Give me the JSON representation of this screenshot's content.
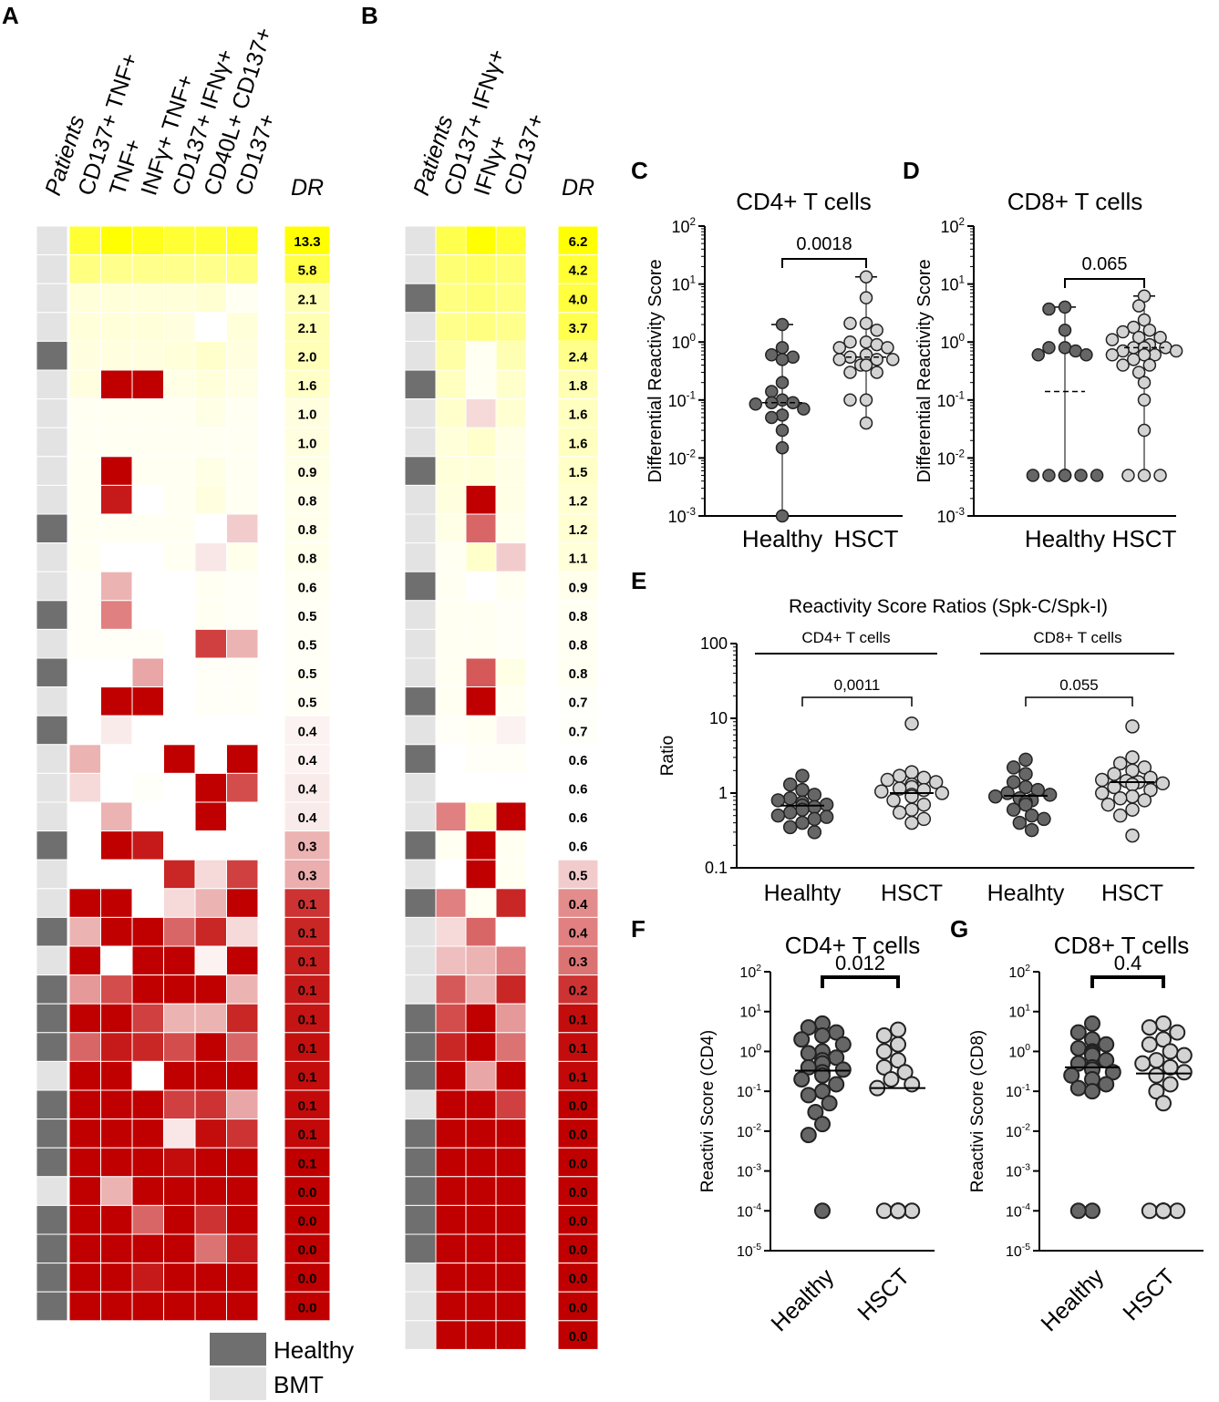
{
  "figure": {
    "panel_letters": [
      "A",
      "B",
      "C",
      "D",
      "E",
      "F",
      "G"
    ],
    "legend": {
      "healthy_label": "Healthy",
      "bmt_label": "BMT",
      "healthy_color": "#6f6f6f",
      "bmt_color": "#e3e3e3"
    },
    "scale_colors": {
      "high": "#ffff00",
      "mid": "#ffffff",
      "low": "#c00000"
    }
  },
  "chart_data": [
    {
      "panel": "A",
      "type": "heatmap",
      "patients_label": "Patients",
      "dr_label": "DR",
      "columns": [
        "CD137+ TNF+",
        "TNF+",
        "INFγ+ TNF+",
        "CD137+ IFNγ+",
        "CD40L+ CD137+",
        "CD137+"
      ],
      "patients": [
        "BMT",
        "BMT",
        "BMT",
        "BMT",
        "Healthy",
        "BMT",
        "BMT",
        "BMT",
        "BMT",
        "BMT",
        "Healthy",
        "BMT",
        "BMT",
        "Healthy",
        "BMT",
        "Healthy",
        "BMT",
        "Healthy",
        "BMT",
        "BMT",
        "BMT",
        "Healthy",
        "BMT",
        "BMT",
        "Healthy",
        "BMT",
        "Healthy",
        "Healthy",
        "Healthy",
        "BMT",
        "Healthy",
        "Healthy",
        "Healthy",
        "BMT",
        "Healthy",
        "Healthy",
        "Healthy",
        "Healthy"
      ],
      "dr_values": [
        "13.3",
        "5.8",
        "2.1",
        "2.1",
        "2.0",
        "1.6",
        "1.0",
        "1.0",
        "0.9",
        "0.8",
        "0.8",
        "0.8",
        "0.6",
        "0.5",
        "0.5",
        "0.5",
        "0.5",
        "0.4",
        "0.4",
        "0.4",
        "0.4",
        "0.3",
        "0.3",
        "0.1",
        "0.1",
        "0.1",
        "0.1",
        "0.1",
        "0.1",
        "0.1",
        "0.1",
        "0.1",
        "0.1",
        "0.0",
        "0.0",
        "0.0",
        "0.0",
        "0.0"
      ],
      "dr_intensity": [
        1.0,
        0.72,
        0.3,
        0.3,
        0.28,
        0.22,
        0.12,
        0.12,
        0.1,
        0.08,
        0.08,
        0.08,
        0.05,
        0.04,
        0.04,
        0.04,
        0.04,
        -0.05,
        -0.05,
        -0.08,
        -0.08,
        -0.3,
        -0.32,
        -0.8,
        -0.85,
        -0.88,
        -0.9,
        -0.92,
        -0.94,
        -0.95,
        -0.96,
        -0.97,
        -1,
        -1,
        -1,
        -1,
        -1,
        -1
      ],
      "cells": [
        [
          0.8,
          1.0,
          0.9,
          0.8,
          0.8,
          0.85
        ],
        [
          0.5,
          0.45,
          0.45,
          0.45,
          0.45,
          0.5
        ],
        [
          0.15,
          0.15,
          0.15,
          0.15,
          0.18,
          0.05
        ],
        [
          0.15,
          0.15,
          0.15,
          0.12,
          0.0,
          0.15
        ],
        [
          0.12,
          0.12,
          0.12,
          0.15,
          0.2,
          0.12
        ],
        [
          0.12,
          -1,
          -1,
          0.1,
          0.15,
          0.1
        ],
        [
          0.05,
          0.05,
          0.05,
          0.05,
          0.1,
          0.05
        ],
        [
          0.05,
          0.05,
          0.05,
          0.05,
          0.05,
          0.05
        ],
        [
          0.05,
          -1,
          0.05,
          0.05,
          0.1,
          0.05
        ],
        [
          0.05,
          -0.9,
          0.0,
          0.05,
          0.12,
          0.05
        ],
        [
          0.05,
          0.05,
          0.05,
          0.05,
          0.0,
          -0.2
        ],
        [
          0.05,
          0.0,
          0.0,
          0.05,
          -0.1,
          0.08
        ],
        [
          0.03,
          -0.3,
          0.0,
          0.0,
          0.05,
          0.03
        ],
        [
          0.03,
          -0.5,
          0.0,
          0.0,
          0.05,
          0.03
        ],
        [
          0.03,
          0.03,
          0.03,
          0.0,
          -0.75,
          -0.3
        ],
        [
          0.0,
          0.0,
          -0.35,
          0.0,
          0.03,
          0.03
        ],
        [
          0.0,
          -1,
          -1,
          0.0,
          0.03,
          0.03
        ],
        [
          0.0,
          -0.08,
          0.0,
          0.0,
          0.0,
          0.0
        ],
        [
          -0.3,
          0.0,
          0.0,
          -1,
          0.0,
          -1
        ],
        [
          -0.15,
          0.0,
          0.02,
          0.0,
          -1,
          -0.7
        ],
        [
          0.0,
          -0.3,
          0.0,
          0.0,
          -1,
          0.0
        ],
        [
          0.0,
          -1,
          -0.9,
          0.0,
          0.0,
          0.0
        ],
        [
          0.0,
          0.0,
          0.0,
          -0.85,
          -0.15,
          -0.75
        ],
        [
          -1,
          -1,
          0.0,
          -0.15,
          -0.3,
          -1
        ],
        [
          -0.3,
          -1,
          -1,
          -0.6,
          -0.85,
          -0.15
        ],
        [
          -1,
          0.0,
          -1,
          -1,
          -0.05,
          -1
        ],
        [
          -0.4,
          -0.7,
          -1,
          -1,
          -1,
          -0.3
        ],
        [
          -1,
          -1,
          -0.75,
          -0.3,
          -0.3,
          -0.85
        ],
        [
          -0.6,
          -0.9,
          -0.85,
          -0.7,
          -1,
          -0.6
        ],
        [
          -1,
          -1,
          0.0,
          -1,
          -1,
          -1
        ],
        [
          -1,
          -1,
          -1,
          -0.75,
          -0.8,
          -0.35
        ],
        [
          -1,
          -1,
          -1,
          -0.1,
          -0.95,
          -0.8
        ],
        [
          -1,
          -1,
          -1,
          -0.95,
          -1,
          -1
        ],
        [
          -1,
          -0.3,
          -1,
          -1,
          -1,
          -1
        ],
        [
          -1,
          -1,
          -0.6,
          -1,
          -0.8,
          -1
        ],
        [
          -1,
          -1,
          -1,
          -1,
          -0.55,
          -0.9
        ],
        [
          -1,
          -1,
          -0.9,
          -1,
          -1,
          -1
        ],
        [
          -1,
          -1,
          -1,
          -1,
          -1,
          -1
        ]
      ]
    },
    {
      "panel": "B",
      "type": "heatmap",
      "patients_label": "Patients",
      "dr_label": "DR",
      "columns": [
        "CD137+ IFNγ+",
        "IFNγ+",
        "CD137+"
      ],
      "patients": [
        "BMT",
        "BMT",
        "Healthy",
        "BMT",
        "BMT",
        "Healthy",
        "BMT",
        "BMT",
        "Healthy",
        "BMT",
        "BMT",
        "BMT",
        "Healthy",
        "BMT",
        "BMT",
        "BMT",
        "Healthy",
        "BMT",
        "Healthy",
        "BMT",
        "BMT",
        "Healthy",
        "BMT",
        "Healthy",
        "BMT",
        "BMT",
        "BMT",
        "Healthy",
        "Healthy",
        "Healthy",
        "BMT",
        "Healthy",
        "Healthy",
        "Healthy",
        "Healthy",
        "Healthy",
        "BMT",
        "BMT",
        "BMT"
      ],
      "dr_values": [
        "6.2",
        "4.2",
        "4.0",
        "3.7",
        "2.4",
        "1.8",
        "1.6",
        "1.6",
        "1.5",
        "1.2",
        "1.2",
        "1.1",
        "0.9",
        "0.8",
        "0.8",
        "0.8",
        "0.7",
        "0.7",
        "0.6",
        "0.6",
        "0.6",
        "0.6",
        "0.5",
        "0.4",
        "0.4",
        "0.3",
        "0.2",
        "0.1",
        "0.1",
        "0.1",
        "0.0",
        "0.0",
        "0.0",
        "0.0",
        "0.0",
        "0.0",
        "0.0",
        "0.0",
        "0.0"
      ],
      "dr_intensity": [
        1.0,
        0.8,
        0.75,
        0.7,
        0.45,
        0.3,
        0.25,
        0.25,
        0.22,
        0.18,
        0.18,
        0.15,
        0.08,
        0.05,
        0.05,
        0.05,
        0.02,
        0.02,
        0.0,
        0.0,
        0.0,
        0.0,
        -0.2,
        -0.45,
        -0.5,
        -0.55,
        -0.8,
        -0.95,
        -0.95,
        -0.97,
        -1,
        -1,
        -1,
        -1,
        -1,
        -1,
        -1,
        -1,
        -1
      ],
      "cells": [
        [
          0.7,
          1.0,
          0.8
        ],
        [
          0.55,
          0.6,
          0.55
        ],
        [
          0.5,
          0.55,
          0.5
        ],
        [
          0.45,
          0.5,
          0.45
        ],
        [
          0.35,
          0.05,
          0.3
        ],
        [
          0.25,
          0.05,
          0.2
        ],
        [
          0.2,
          -0.15,
          0.18
        ],
        [
          0.15,
          0.2,
          0.1
        ],
        [
          0.15,
          0.15,
          0.1
        ],
        [
          0.12,
          -1,
          0.1
        ],
        [
          0.1,
          -0.6,
          0.08
        ],
        [
          0.05,
          0.2,
          -0.2
        ],
        [
          0.05,
          0.0,
          0.05
        ],
        [
          0.05,
          0.05,
          0.03
        ],
        [
          0.05,
          0.05,
          0.03
        ],
        [
          0.05,
          -0.65,
          0.1
        ],
        [
          0.05,
          -1,
          0.05
        ],
        [
          0.03,
          0.05,
          -0.05
        ],
        [
          0.0,
          0.03,
          0.03
        ],
        [
          0.0,
          0.0,
          0.0
        ],
        [
          -0.5,
          0.2,
          -1
        ],
        [
          0.05,
          -1,
          0.05
        ],
        [
          0.0,
          -1,
          0.05
        ],
        [
          -0.5,
          0.05,
          -0.85
        ],
        [
          -0.15,
          -0.6,
          0.0
        ],
        [
          -0.25,
          -0.3,
          -0.5
        ],
        [
          -0.65,
          -0.3,
          -0.85
        ],
        [
          -0.7,
          -1,
          -0.4
        ],
        [
          -0.85,
          -1,
          -0.55
        ],
        [
          -1,
          -0.35,
          -1
        ],
        [
          -1,
          -1,
          -0.75
        ],
        [
          -1,
          -1,
          -1
        ],
        [
          -1,
          -1,
          -1
        ],
        [
          -1,
          -1,
          -1
        ],
        [
          -1,
          -1,
          -1
        ],
        [
          -1,
          -1,
          -1
        ],
        [
          -1,
          -1,
          -1
        ],
        [
          -1,
          -1,
          -1
        ],
        [
          -1,
          -1,
          -1
        ]
      ]
    },
    {
      "panel": "C",
      "type": "scatter",
      "title": "CD4+ T cells",
      "ylabel": "Differential Reactivity Score",
      "categories": [
        "Healthy",
        "HSCT"
      ],
      "y_ticks": [
        "10^-3",
        "10^-2",
        "10^-1",
        "10^0",
        "10^1",
        "10^2"
      ],
      "ylim_log10": [
        -3,
        2
      ],
      "pvalue": "0.0018",
      "series": [
        {
          "name": "Healthy",
          "median": 0.09,
          "min": 0.001,
          "max": 2.0,
          "values": [
            2.0,
            0.8,
            0.6,
            0.55,
            0.5,
            0.2,
            0.14,
            0.1,
            0.09,
            0.09,
            0.085,
            0.07,
            0.055,
            0.05,
            0.03,
            0.015,
            0.001
          ]
        },
        {
          "name": "HSCT",
          "median": 0.55,
          "min": 0.04,
          "max": 13.3,
          "values": [
            13.3,
            5.8,
            2.1,
            2.1,
            1.6,
            1.0,
            1.0,
            0.9,
            0.8,
            0.8,
            0.6,
            0.55,
            0.5,
            0.5,
            0.5,
            0.4,
            0.4,
            0.3,
            0.3,
            0.1,
            0.1,
            0.04
          ]
        }
      ]
    },
    {
      "panel": "D",
      "type": "scatter",
      "title": "CD8+ T cells",
      "ylabel": "Differential Reactivity Score",
      "categories": [
        "Healthy",
        "HSCT"
      ],
      "y_ticks": [
        "10^-3",
        "10^-2",
        "10^-1",
        "10^0",
        "10^1",
        "10^2"
      ],
      "ylim_log10": [
        -3,
        2
      ],
      "pvalue": "0.065",
      "series": [
        {
          "name": "Healthy",
          "median": 0.14,
          "min": 0.005,
          "max": 4.0,
          "values": [
            4.0,
            3.7,
            1.6,
            0.8,
            0.8,
            0.7,
            0.6,
            0.6,
            0.005,
            0.005,
            0.005,
            0.005,
            0.005,
            0.005,
            0.005,
            0.005
          ]
        },
        {
          "name": "HSCT",
          "median": 0.8,
          "min": 0.005,
          "max": 6.2,
          "values": [
            6.2,
            4.2,
            2.4,
            1.8,
            1.6,
            1.5,
            1.2,
            1.2,
            1.1,
            0.9,
            0.8,
            0.8,
            0.8,
            0.7,
            0.7,
            0.6,
            0.6,
            0.6,
            0.5,
            0.4,
            0.4,
            0.3,
            0.2,
            0.1,
            0.03,
            0.005,
            0.005,
            0.005
          ]
        }
      ]
    },
    {
      "panel": "E",
      "type": "scatter",
      "title": "Reactivity Score Ratios (Spk-C/Spk-I)",
      "ylabel": "Ratio",
      "groups": [
        "CD4+ T cells",
        "CD8+ T cells"
      ],
      "categories": [
        "Healhty",
        "HSCT",
        "Healhty",
        "HSCT"
      ],
      "y_ticks": [
        "0.1",
        "1",
        "10",
        "100"
      ],
      "ylim_log10": [
        -1,
        2
      ],
      "pvalues": [
        "0,0011",
        "0.055"
      ],
      "series": [
        {
          "name": "CD4 Healhty",
          "median": 0.68,
          "values": [
            1.7,
            1.3,
            1.1,
            0.95,
            0.85,
            0.8,
            0.75,
            0.7,
            0.68,
            0.65,
            0.6,
            0.55,
            0.5,
            0.48,
            0.45,
            0.4,
            0.35,
            0.3
          ]
        },
        {
          "name": "CD4 HSCT",
          "median": 1.0,
          "values": [
            8.5,
            1.9,
            1.7,
            1.6,
            1.5,
            1.4,
            1.3,
            1.2,
            1.15,
            1.1,
            1.05,
            1.0,
            0.95,
            0.9,
            0.8,
            0.7,
            0.6,
            0.55,
            0.45,
            0.4
          ]
        },
        {
          "name": "CD8 Healhty",
          "median": 0.92,
          "values": [
            2.8,
            2.2,
            1.8,
            1.4,
            1.2,
            1.1,
            1.0,
            0.95,
            0.9,
            0.85,
            0.8,
            0.75,
            0.7,
            0.6,
            0.5,
            0.45,
            0.4,
            0.32
          ]
        },
        {
          "name": "CD8 HSCT",
          "median": 1.4,
          "values": [
            7.8,
            3.0,
            2.5,
            2.2,
            2.0,
            1.8,
            1.6,
            1.5,
            1.45,
            1.4,
            1.35,
            1.3,
            1.2,
            1.1,
            1.0,
            0.9,
            0.85,
            0.8,
            0.7,
            0.6,
            0.5,
            0.27
          ]
        }
      ]
    },
    {
      "panel": "F",
      "type": "scatter",
      "title": "CD4+ T cells",
      "ylabel": "Reactivi Score (CD4)",
      "categories": [
        "Healthy",
        "HSCT"
      ],
      "y_ticks": [
        "10^-5",
        "10^-4",
        "10^-3",
        "10^-2",
        "10^-1",
        "10^0",
        "10^1",
        "10^2"
      ],
      "ylim_log10": [
        -5,
        2
      ],
      "pvalue": "0.012",
      "series": [
        {
          "name": "Healthy",
          "median": 0.33,
          "values": [
            5,
            4,
            3,
            2.5,
            2,
            1.5,
            1.0,
            0.9,
            0.7,
            0.6,
            0.5,
            0.4,
            0.35,
            0.3,
            0.25,
            0.2,
            0.15,
            0.1,
            0.08,
            0.05,
            0.03,
            0.015,
            0.008,
            0.0001
          ]
        },
        {
          "name": "HSCT",
          "median": 0.12,
          "values": [
            3.5,
            2.5,
            1.5,
            1.0,
            0.6,
            0.4,
            0.3,
            0.2,
            0.15,
            0.12,
            0.0001,
            0.0001,
            0.0001,
            0.0001,
            0.0001,
            0.0001,
            0.0001,
            0.0001
          ]
        }
      ]
    },
    {
      "panel": "G",
      "type": "scatter",
      "title": "CD8+ T cells",
      "ylabel": "Reactivi Score (CD8)",
      "categories": [
        "Healthy",
        "HSCT"
      ],
      "y_ticks": [
        "10^-5",
        "10^-4",
        "10^-3",
        "10^-2",
        "10^-1",
        "10^0",
        "10^1",
        "10^2"
      ],
      "ylim_log10": [
        -5,
        2
      ],
      "pvalue": "0.4",
      "series": [
        {
          "name": "Healthy",
          "median": 0.4,
          "values": [
            5,
            3,
            2,
            1.5,
            1.2,
            1.0,
            0.9,
            0.8,
            0.6,
            0.5,
            0.4,
            0.35,
            0.3,
            0.25,
            0.2,
            0.15,
            0.12,
            0.1,
            0.0001,
            0.0001
          ]
        },
        {
          "name": "HSCT",
          "median": 0.28,
          "values": [
            5,
            4,
            3,
            2,
            1.5,
            1.0,
            0.8,
            0.6,
            0.5,
            0.4,
            0.3,
            0.25,
            0.15,
            0.1,
            0.05,
            0.0001,
            0.0001,
            0.0001,
            0.0001,
            0.0001,
            0.0001,
            0.0001,
            0.0001,
            0.0001
          ]
        }
      ]
    }
  ]
}
